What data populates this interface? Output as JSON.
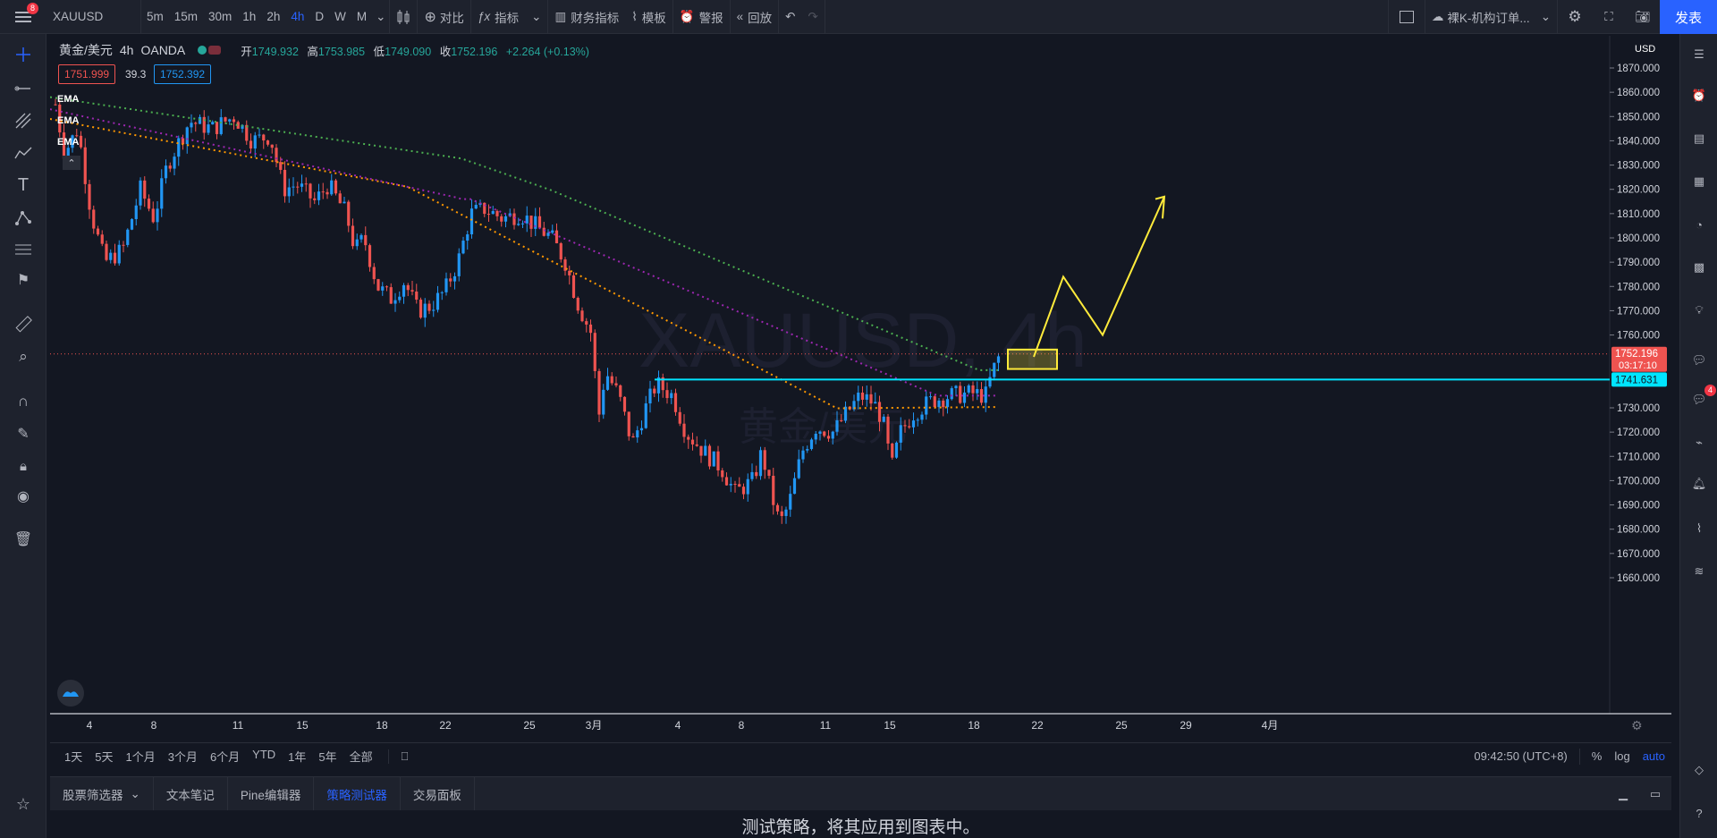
{
  "topbar": {
    "badge": "8",
    "symbol": "XAUUSD",
    "intervals": [
      "5m",
      "15m",
      "30m",
      "1h",
      "2h",
      "4h",
      "D",
      "W",
      "M"
    ],
    "active_interval": "4h",
    "compare": "对比",
    "indicators": "指标",
    "financials": "财务指标",
    "templates": "模板",
    "alerts": "警报",
    "replay": "回放",
    "layout_name": "裸K-机构订单...",
    "publish": "发表"
  },
  "legend": {
    "title": "黄金/美元",
    "interval": "4h",
    "source": "OANDA",
    "open_label": "开",
    "open": "1749.932",
    "high_label": "高",
    "high": "1753.985",
    "low_label": "低",
    "low": "1749.090",
    "close_label": "收",
    "close": "1752.196",
    "change": "+2.264 (+0.13%)",
    "bid": "1751.999",
    "spread": "39.3",
    "ask": "1752.392",
    "ema_labels": [
      "EMA",
      "EMA",
      "EMA"
    ]
  },
  "watermark": {
    "line1": "XAUUSD, 4h",
    "line2": "黄金/美元"
  },
  "price_axis": {
    "currency": "USD",
    "ticks": [
      "1870.000",
      "1860.000",
      "1850.000",
      "1840.000",
      "1830.000",
      "1820.000",
      "1810.000",
      "1800.000",
      "1790.000",
      "1780.000",
      "1770.000",
      "1760.000",
      "1730.000",
      "1720.000",
      "1710.000",
      "1700.000",
      "1690.000",
      "1680.000",
      "1670.000",
      "1660.000"
    ],
    "last_price": "1752.196",
    "countdown": "03:17:10",
    "hline_price": "1741.631"
  },
  "time_axis": {
    "ticks": [
      "4",
      "8",
      "11",
      "15",
      "18",
      "22",
      "25",
      "3月",
      "4",
      "8",
      "11",
      "15",
      "18",
      "22",
      "25",
      "29",
      "4月"
    ]
  },
  "bottom": {
    "ranges": [
      "1天",
      "5天",
      "1个月",
      "3个月",
      "6个月",
      "YTD",
      "1年",
      "5年",
      "全部"
    ],
    "clock": "09:42:50 (UTC+8)",
    "percent": "%",
    "log": "log",
    "auto": "auto"
  },
  "panel": {
    "tabs": [
      "股票筛选器",
      "文本笔记",
      "Pine编辑器",
      "策略测试器",
      "交易面板"
    ],
    "active_tab": "策略测试器",
    "message": "测试策略，将其应用到图表中。"
  },
  "right_badge": "4",
  "colors": {
    "bg": "#131722",
    "up": "#2196f3",
    "down": "#ef5350",
    "ema_green": "#4caf50",
    "ema_purple": "#9c27b0",
    "ema_orange": "#ff9800",
    "hline": "#00e5ff",
    "drawing": "#ffeb3b"
  }
}
